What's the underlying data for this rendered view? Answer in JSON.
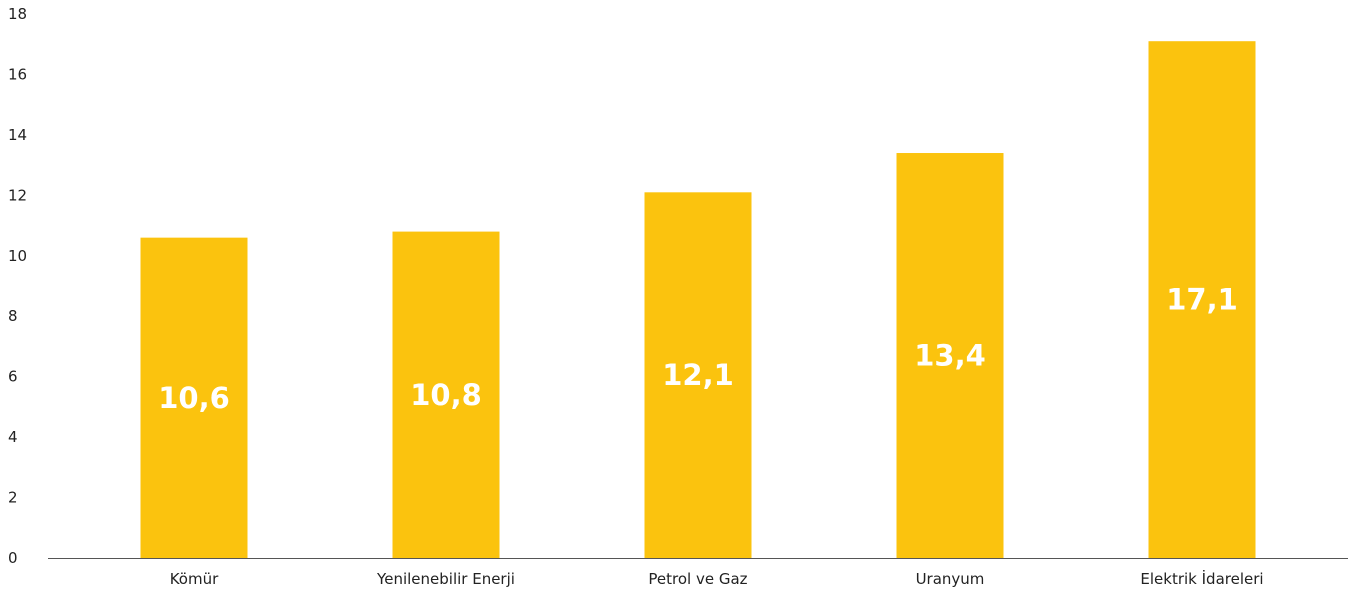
{
  "chart_data": {
    "type": "bar",
    "categories": [
      "Kömür",
      "Yenilenebilir Enerji",
      "Petrol ve Gaz",
      "Uranyum",
      "Elektrik İdareleri"
    ],
    "values": [
      10.6,
      10.8,
      12.1,
      13.4,
      17.1
    ],
    "data_labels": [
      "10,6",
      "10,8",
      "12,1",
      "13,4",
      "17,1"
    ],
    "ylim": [
      0,
      18
    ],
    "y_ticks": [
      0,
      2,
      4,
      6,
      8,
      10,
      12,
      14,
      16,
      18
    ],
    "grid": false,
    "legend": "none",
    "title": "",
    "xlabel": "",
    "ylabel": "",
    "colors": {
      "bar": "#FBC30E",
      "axis": "#555555",
      "label": "#222222",
      "data_label": "#FFFFFF"
    }
  }
}
